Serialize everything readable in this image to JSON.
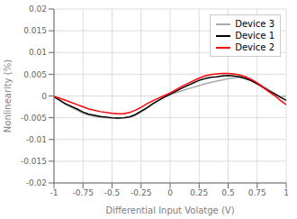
{
  "chart_data": {
    "type": "line",
    "xlabel": "Differential Input Volatge (V)",
    "ylabel": "Nonlinearity (%)",
    "x": [
      -1.0,
      -0.9,
      -0.8,
      -0.75,
      -0.7,
      -0.6,
      -0.5,
      -0.45,
      -0.4,
      -0.35,
      -0.3,
      -0.25,
      -0.2,
      -0.15,
      -0.1,
      -0.05,
      0.0,
      0.1,
      0.2,
      0.25,
      0.3,
      0.35,
      0.4,
      0.45,
      0.5,
      0.55,
      0.6,
      0.65,
      0.7,
      0.75,
      0.8,
      0.85,
      0.9,
      0.95,
      1.0
    ],
    "series": [
      {
        "name": "Device 3",
        "color": "#aaaaaa",
        "values": [
          -0.0001,
          -0.002,
          -0.0033,
          -0.004,
          -0.0044,
          -0.0049,
          -0.0051,
          -0.0052,
          -0.0051,
          -0.0049,
          -0.0044,
          -0.0037,
          -0.0028,
          -0.0019,
          -0.001,
          -0.0003,
          0.0003,
          0.0012,
          0.002,
          0.0024,
          0.0028,
          0.0031,
          0.0034,
          0.0037,
          0.004,
          0.0042,
          0.0043,
          0.0042,
          0.0038,
          0.0031,
          0.0023,
          0.0014,
          0.0006,
          -0.0002,
          0.0
        ]
      },
      {
        "name": "Device 1",
        "color": "#000000",
        "values": [
          -0.0002,
          -0.0018,
          -0.003,
          -0.0037,
          -0.0042,
          -0.0047,
          -0.005,
          -0.0051,
          -0.005,
          -0.0048,
          -0.0043,
          -0.0035,
          -0.0027,
          -0.0018,
          -0.001,
          -0.0003,
          0.0004,
          0.0018,
          0.003,
          0.0036,
          0.004,
          0.0043,
          0.0044,
          0.0046,
          0.0047,
          0.0046,
          0.0044,
          0.004,
          0.0035,
          0.0028,
          0.002,
          0.0012,
          0.0005,
          -0.0003,
          -0.001
        ]
      },
      {
        "name": "Device 2",
        "color": "#ff0000",
        "values": [
          -0.0001,
          -0.001,
          -0.002,
          -0.0025,
          -0.003,
          -0.0036,
          -0.004,
          -0.0041,
          -0.0041,
          -0.0038,
          -0.0033,
          -0.0026,
          -0.0018,
          -0.0011,
          -0.0005,
          0.0001,
          0.0007,
          0.0022,
          0.0035,
          0.0041,
          0.0046,
          0.0049,
          0.0051,
          0.0052,
          0.0052,
          0.0051,
          0.0048,
          0.0044,
          0.0038,
          0.003,
          0.002,
          0.001,
          0.0001,
          -0.001,
          -0.002
        ]
      }
    ],
    "xlim": [
      -1,
      1
    ],
    "ylim": [
      -0.02,
      0.02
    ],
    "xticks": [
      -1,
      -0.75,
      -0.5,
      -0.25,
      0,
      0.25,
      0.5,
      0.75,
      1
    ],
    "yticks": [
      -0.02,
      -0.015,
      -0.01,
      -0.005,
      0,
      0.005,
      0.01,
      0.015,
      0.02
    ],
    "grid": true,
    "legend": "upper right"
  }
}
